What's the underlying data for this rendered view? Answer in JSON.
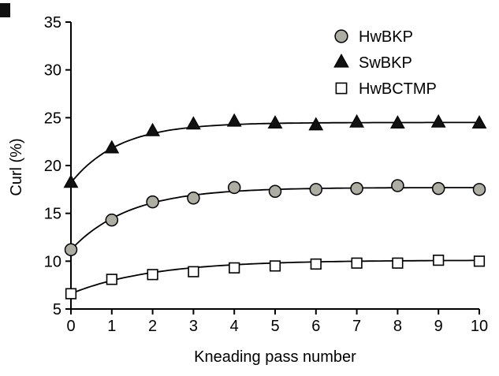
{
  "figure": {
    "background": "#ffffff",
    "axis_color": "#000000",
    "curve_color": "#000000"
  },
  "chart_data": {
    "type": "scatter",
    "title": "",
    "xlabel": "Kneading pass number",
    "ylabel": "Curl (%)",
    "xlim": [
      0,
      10
    ],
    "ylim": [
      5,
      35
    ],
    "xticks": [
      0,
      1,
      2,
      3,
      4,
      5,
      6,
      7,
      8,
      9,
      10
    ],
    "yticks": [
      5,
      10,
      15,
      20,
      25,
      30,
      35
    ],
    "x": [
      0,
      1,
      2,
      3,
      4,
      5,
      6,
      7,
      8,
      9,
      10
    ],
    "grid": false,
    "legend_position": "inside-upper-right",
    "series": [
      {
        "name": "HwBKP",
        "marker": "circle",
        "fill": "#adada3",
        "stroke": "#000000",
        "values": [
          11.2,
          14.3,
          16.2,
          16.6,
          17.7,
          17.3,
          17.5,
          17.6,
          17.9,
          17.6,
          17.5
        ],
        "fit": {
          "a": 17.7,
          "b": 6.5,
          "c": 0.7
        }
      },
      {
        "name": "SwBKP",
        "marker": "triangle",
        "fill": "#111111",
        "stroke": "#000000",
        "values": [
          18.2,
          21.8,
          23.6,
          24.3,
          24.6,
          24.4,
          24.2,
          24.5,
          24.4,
          24.5,
          24.4
        ],
        "fit": {
          "a": 24.5,
          "b": 6.3,
          "c": 0.85
        }
      },
      {
        "name": "HwBCTMP",
        "marker": "square",
        "fill": "#ffffff",
        "stroke": "#000000",
        "values": [
          6.6,
          8.1,
          8.6,
          8.9,
          9.3,
          9.5,
          9.7,
          9.8,
          9.8,
          10.1,
          10.0
        ],
        "fit": {
          "a": 10.1,
          "b": 3.5,
          "c": 0.5
        }
      }
    ]
  }
}
